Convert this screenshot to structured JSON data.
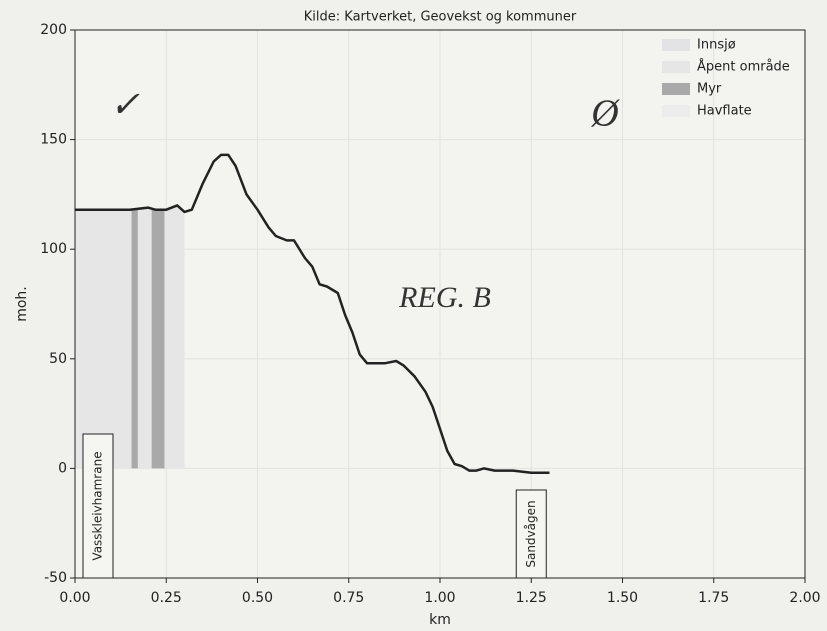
{
  "chart_data": {
    "type": "line",
    "title": "Kilde: Kartverket, Geovekst og kommuner",
    "xlabel": "km",
    "ylabel": "moh.",
    "x": [
      0,
      0.05,
      0.1,
      0.15,
      0.2,
      0.22,
      0.25,
      0.28,
      0.3,
      0.32,
      0.35,
      0.38,
      0.4,
      0.42,
      0.44,
      0.47,
      0.5,
      0.53,
      0.55,
      0.58,
      0.6,
      0.63,
      0.65,
      0.67,
      0.69,
      0.72,
      0.74,
      0.76,
      0.78,
      0.8,
      0.83,
      0.85,
      0.88,
      0.9,
      0.93,
      0.96,
      0.98,
      1.0,
      1.02,
      1.04,
      1.06,
      1.08,
      1.1,
      1.12,
      1.15,
      1.2,
      1.25,
      1.3
    ],
    "values": [
      118,
      118,
      118,
      118,
      119,
      118,
      118,
      120,
      117,
      118,
      130,
      140,
      143,
      143,
      138,
      125,
      118,
      110,
      106,
      104,
      104,
      96,
      92,
      84,
      83,
      80,
      70,
      62,
      52,
      48,
      48,
      48,
      49,
      47,
      42,
      35,
      28,
      18,
      8,
      2,
      1,
      -1,
      -1,
      0,
      -1,
      -1,
      -2,
      -2
    ],
    "color": "#222222",
    "areas": [
      {
        "name": "Innsjø",
        "color": "#e3e3e6",
        "spans": []
      },
      {
        "name": "Åpent område",
        "color": "#e6e6e6",
        "spans": [
          [
            0,
            0.3
          ]
        ]
      },
      {
        "name": "Myr",
        "color": "#a9a9a9",
        "spans": [
          [
            0.155,
            0.172
          ],
          [
            0.21,
            0.245
          ]
        ]
      },
      {
        "name": "Havflate",
        "color": "#ececec",
        "spans": []
      }
    ],
    "place_labels": [
      {
        "text": "Vasskleivhamrane",
        "x": 0.063
      },
      {
        "text": "Sandvågen",
        "x": 1.25
      }
    ],
    "annotations": [
      "REG. B",
      "✓",
      "Ø"
    ],
    "xlim": [
      0,
      2
    ],
    "ylim": [
      -50,
      200
    ],
    "xticks": [
      {
        "value": 0,
        "label": "0.00"
      },
      {
        "value": 0.25,
        "label": "0.25"
      },
      {
        "value": 0.5,
        "label": "0.50"
      },
      {
        "value": 0.75,
        "label": "0.75"
      },
      {
        "value": 1,
        "label": "1.00"
      },
      {
        "value": 1.25,
        "label": "1.25"
      },
      {
        "value": 1.5,
        "label": "1.50"
      },
      {
        "value": 1.75,
        "label": "1.75"
      },
      {
        "value": 2,
        "label": "2.00"
      }
    ],
    "yticks": [
      -50,
      0,
      50,
      100,
      150,
      200
    ],
    "grid": true
  }
}
